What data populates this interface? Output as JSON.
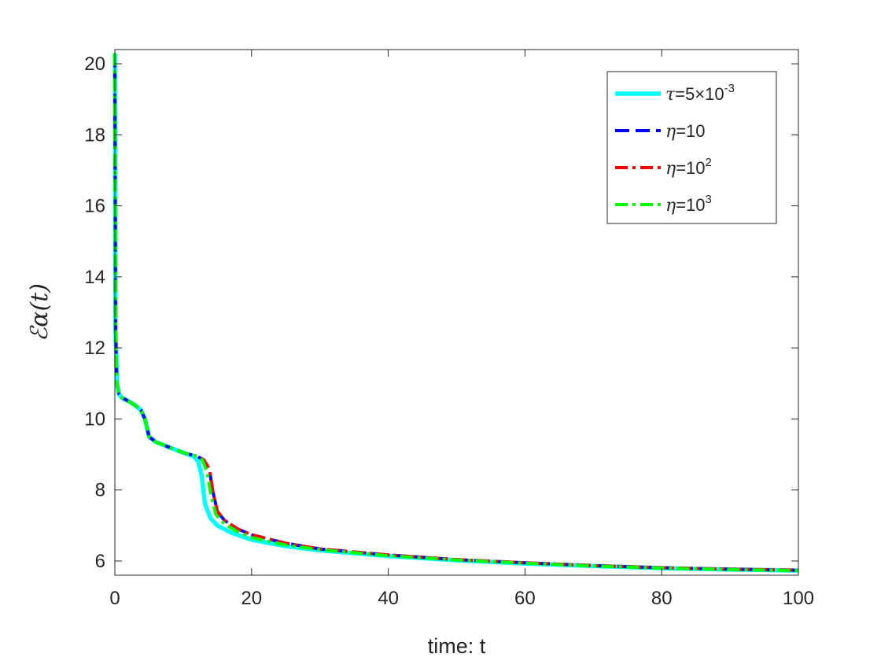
{
  "chart_data": {
    "type": "line",
    "xlabel": "time: t",
    "ylabel": "ℰα(t)",
    "xlim": [
      0,
      100
    ],
    "ylim": [
      5.6,
      20.4
    ],
    "xticks": [
      0,
      20,
      40,
      60,
      80,
      100
    ],
    "yticks": [
      6,
      8,
      10,
      12,
      14,
      16,
      18,
      20
    ],
    "grid": false,
    "legend_position": "top-right",
    "legend": [
      {
        "prefix": "τ",
        "text": "=5×10",
        "sup": "-3"
      },
      {
        "prefix": "η",
        "text": "=10",
        "sup": ""
      },
      {
        "prefix": "η",
        "text": "=10",
        "sup": "2"
      },
      {
        "prefix": "η",
        "text": "=10",
        "sup": "3"
      }
    ],
    "series": [
      {
        "color": "#00ffff",
        "style": "solid",
        "x": [
          0,
          0.1,
          0.3,
          0.6,
          1,
          2,
          3,
          3.8,
          4.4,
          5,
          6,
          8,
          10,
          11.5,
          12.2,
          12.7,
          13.2,
          14,
          15,
          17,
          20,
          25,
          30,
          40,
          50,
          60,
          70,
          80,
          90,
          100
        ],
        "y": [
          20.3,
          12.5,
          11.0,
          10.7,
          10.6,
          10.5,
          10.38,
          10.25,
          10.0,
          9.5,
          9.35,
          9.2,
          9.05,
          8.95,
          8.8,
          8.4,
          7.6,
          7.2,
          7.0,
          6.8,
          6.6,
          6.42,
          6.3,
          6.14,
          6.02,
          5.93,
          5.86,
          5.8,
          5.76,
          5.73
        ]
      },
      {
        "color": "#0000ff",
        "style": "dashed",
        "x": [
          0,
          0.1,
          0.3,
          0.6,
          1,
          2,
          3,
          3.8,
          4.4,
          5,
          6,
          8,
          10,
          12,
          13,
          13.8,
          14.4,
          15,
          16,
          18,
          20,
          25,
          30,
          40,
          50,
          60,
          70,
          80,
          90,
          100
        ],
        "y": [
          20.3,
          12.5,
          11.0,
          10.7,
          10.6,
          10.5,
          10.38,
          10.25,
          10.0,
          9.5,
          9.35,
          9.2,
          9.05,
          8.95,
          8.85,
          8.6,
          7.9,
          7.4,
          7.15,
          6.9,
          6.74,
          6.5,
          6.34,
          6.17,
          6.04,
          5.95,
          5.87,
          5.81,
          5.77,
          5.74
        ]
      },
      {
        "color": "#ff0000",
        "style": "dashdot",
        "x": [
          0,
          0.1,
          0.3,
          0.6,
          1,
          2,
          3,
          3.8,
          4.4,
          5,
          6,
          8,
          10,
          12,
          13,
          13.8,
          14.4,
          15,
          16,
          18,
          20,
          25,
          30,
          40,
          50,
          60,
          70,
          80,
          90,
          100
        ],
        "y": [
          20.3,
          12.5,
          11.0,
          10.7,
          10.6,
          10.5,
          10.38,
          10.25,
          10.0,
          9.5,
          9.35,
          9.2,
          9.05,
          8.95,
          8.85,
          8.6,
          7.9,
          7.4,
          7.15,
          6.9,
          6.74,
          6.5,
          6.34,
          6.17,
          6.04,
          5.95,
          5.87,
          5.81,
          5.77,
          5.74
        ]
      },
      {
        "color": "#00ff00",
        "style": "dashdot",
        "x": [
          0,
          0.1,
          0.3,
          0.6,
          1,
          2,
          3,
          3.8,
          4.4,
          5,
          6,
          8,
          10,
          12,
          12.8,
          13.5,
          14.1,
          14.8,
          16,
          18,
          20,
          25,
          30,
          40,
          50,
          60,
          70,
          80,
          90,
          100
        ],
        "y": [
          20.3,
          12.5,
          11.0,
          10.7,
          10.6,
          10.5,
          10.38,
          10.25,
          10.0,
          9.5,
          9.35,
          9.2,
          9.05,
          8.95,
          8.85,
          8.5,
          7.8,
          7.3,
          7.05,
          6.82,
          6.66,
          6.45,
          6.32,
          6.15,
          6.03,
          5.94,
          5.86,
          5.8,
          5.76,
          5.73
        ]
      }
    ]
  }
}
